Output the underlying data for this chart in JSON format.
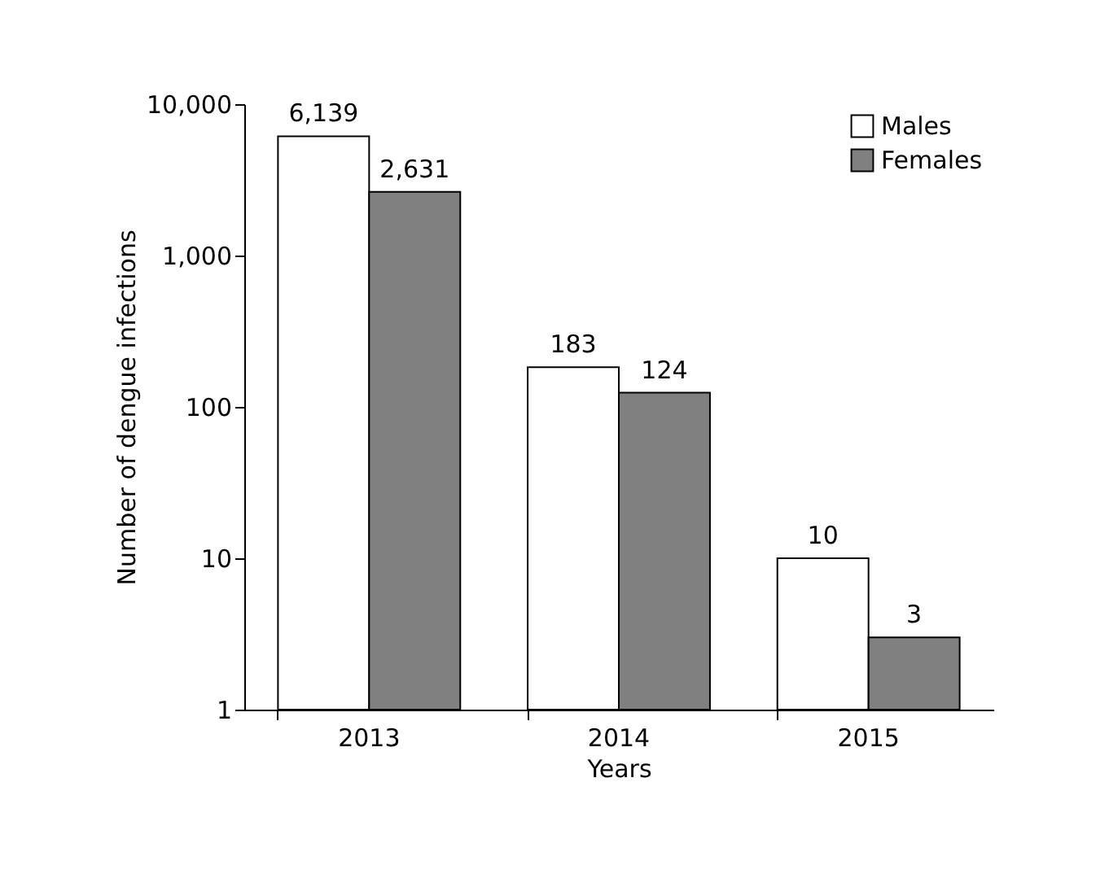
{
  "chart_data": {
    "type": "bar",
    "xlabel": "Years",
    "ylabel": "Number of dengue infections",
    "categories": [
      "2013",
      "2014",
      "2015"
    ],
    "series": [
      {
        "name": "Males",
        "color": "#ffffff",
        "values": [
          6139,
          183,
          10
        ],
        "value_labels": [
          "6,139",
          "183",
          "10"
        ]
      },
      {
        "name": "Females",
        "color": "#808080",
        "values": [
          2631,
          124,
          3
        ],
        "value_labels": [
          "2,631",
          "124",
          "3"
        ]
      }
    ],
    "log": "y",
    "ylim": [
      1,
      10000
    ],
    "yticks": [
      1,
      10,
      100,
      {
        "value": 1000,
        "label": "1,000"
      },
      {
        "value": 10000,
        "label": "10,000"
      }
    ],
    "legend": "top right",
    "grid": false
  }
}
